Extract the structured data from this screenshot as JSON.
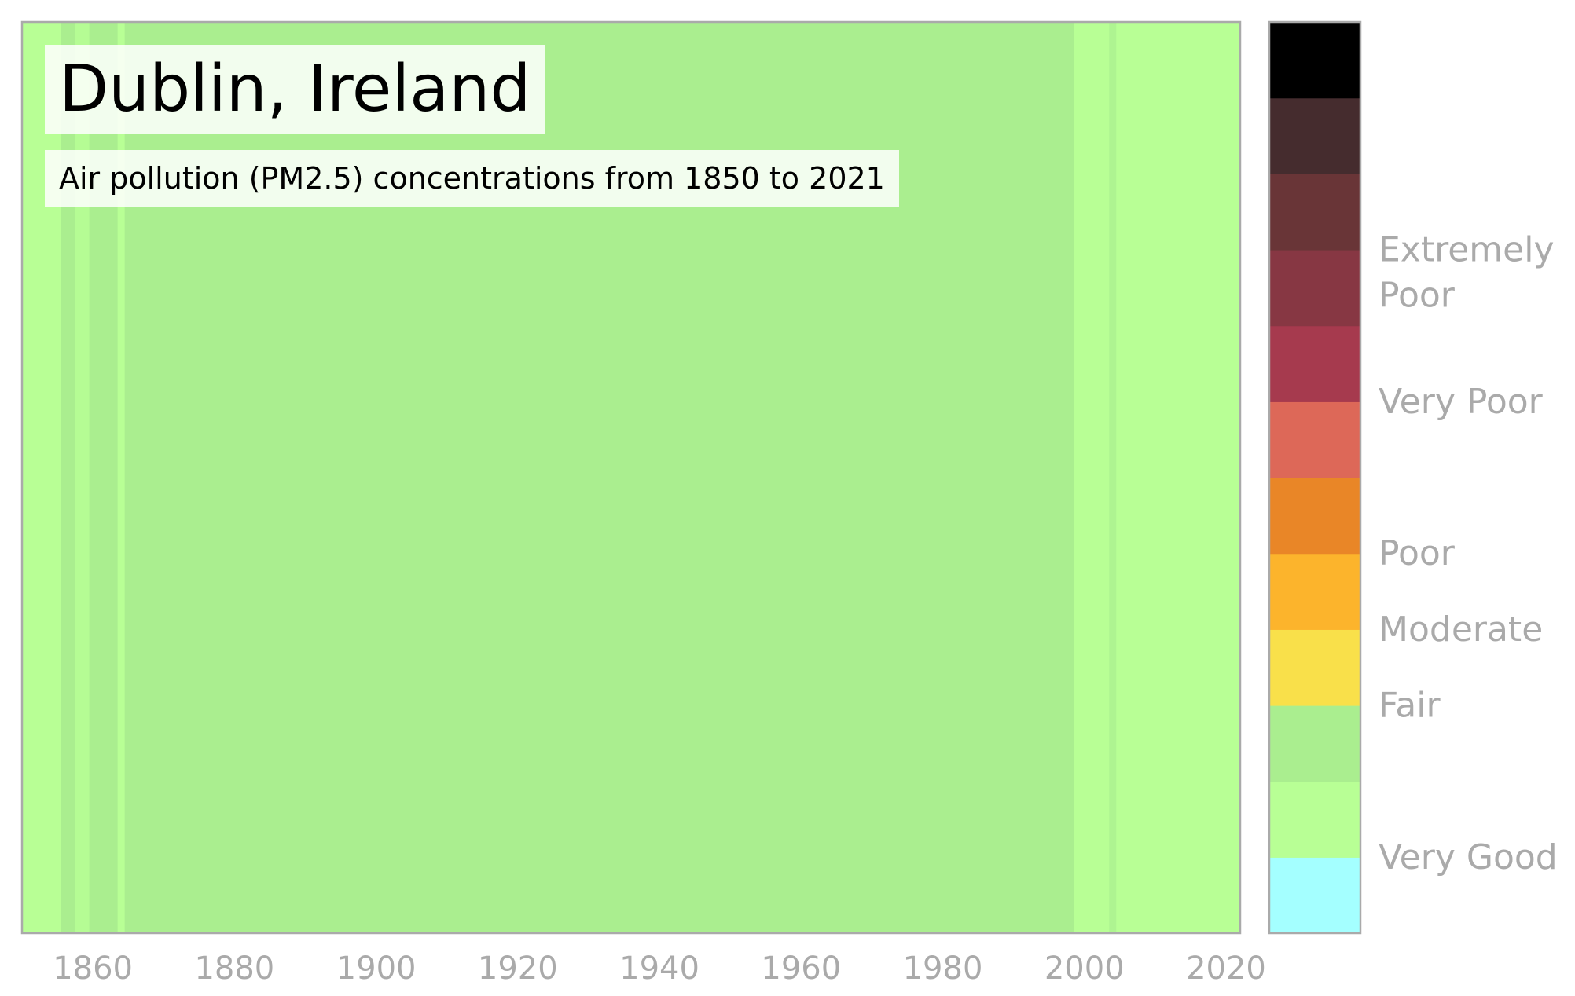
{
  "chart_data": {
    "type": "heatmap",
    "title": "Dublin, Ireland",
    "subtitle": "Air pollution (PM2.5) concentrations from 1850 to 2021",
    "x_range": [
      1850,
      2022
    ],
    "x_ticks": [
      "1860",
      "1880",
      "1900",
      "1920",
      "1940",
      "1960",
      "1980",
      "2000",
      "2020"
    ],
    "x_tick_values": [
      1860,
      1880,
      1900,
      1920,
      1940,
      1960,
      1980,
      2000,
      2020
    ],
    "stripes": [
      {
        "start": 1850,
        "end": 1855.5,
        "color": "#b8ff95"
      },
      {
        "start": 1855.5,
        "end": 1857.5,
        "color": "#aaee8f"
      },
      {
        "start": 1857.5,
        "end": 1859.5,
        "color": "#b5fc94"
      },
      {
        "start": 1859.5,
        "end": 1863.5,
        "color": "#aaee8f"
      },
      {
        "start": 1863.5,
        "end": 1864.5,
        "color": "#b8ff95"
      },
      {
        "start": 1864.5,
        "end": 1998.5,
        "color": "#aaee8f"
      },
      {
        "start": 1998.5,
        "end": 2003.5,
        "color": "#b8ff95"
      },
      {
        "start": 2003.5,
        "end": 2004.5,
        "color": "#aef491"
      },
      {
        "start": 2004.5,
        "end": 2022,
        "color": "#b8ff95"
      }
    ],
    "colorbar": {
      "colors": [
        "#a4ffff",
        "#b8ff95",
        "#aaee8f",
        "#f9e04a",
        "#fcb42c",
        "#e98627",
        "#dd6858",
        "#a63a4e",
        "#873743",
        "#693537",
        "#452c2e",
        "#000000"
      ],
      "labels": [
        {
          "text": "Very Good",
          "level": 1.0
        },
        {
          "text": "Fair",
          "level": 3.0
        },
        {
          "text": "Moderate",
          "level": 4.0
        },
        {
          "text": "Poor",
          "level": 5.0
        },
        {
          "text": "Very Poor",
          "level": 7.0
        },
        {
          "text": "Extremely Poor",
          "level": 8.7
        }
      ]
    }
  },
  "colors": {
    "frame": "#aaaaaa",
    "tick_text": "#aaaaaa"
  }
}
